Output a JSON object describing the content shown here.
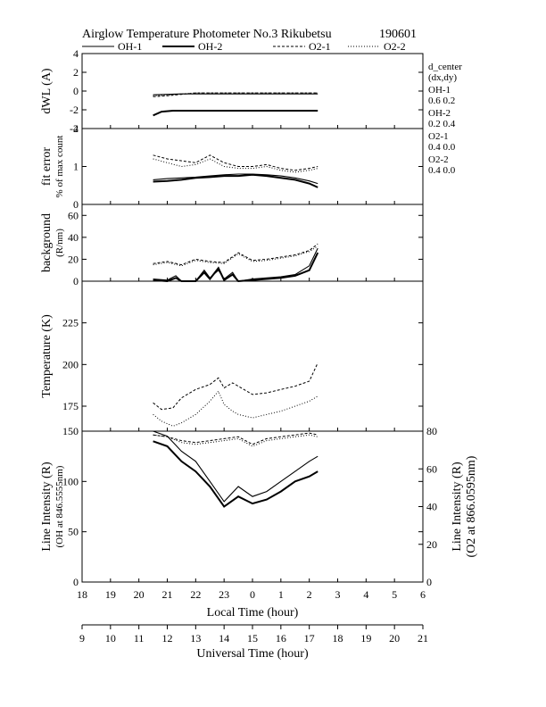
{
  "title": "Airglow Temperature Photometer No.3  Rikubetsu",
  "date": "190601",
  "legend": [
    {
      "name": "OH-1",
      "style": "solid-thin"
    },
    {
      "name": "OH-2",
      "style": "solid-thick"
    },
    {
      "name": "O2-1",
      "style": "dashed"
    },
    {
      "name": "O2-2",
      "style": "dotted"
    }
  ],
  "dcenter": {
    "heading1": "d_center",
    "heading2": "(dx,dy)",
    "rows": [
      {
        "name": "OH-1",
        "value": "0.6  0.2"
      },
      {
        "name": "OH-2",
        "value": "0.2  0.4"
      },
      {
        "name": "O2-1",
        "value": "0.4  0.0"
      },
      {
        "name": "O2-2",
        "value": "0.4  0.0"
      }
    ]
  },
  "x_local": {
    "label": "Local Time (hour)",
    "ticks": [
      "18",
      "19",
      "20",
      "21",
      "22",
      "23",
      "0",
      "1",
      "2",
      "3",
      "4",
      "5",
      "6"
    ]
  },
  "x_ut": {
    "label": "Universal Time (hour)",
    "ticks": [
      "9",
      "10",
      "11",
      "12",
      "13",
      "14",
      "15",
      "16",
      "17",
      "18",
      "19",
      "20",
      "21"
    ]
  },
  "chart_data": [
    {
      "type": "line",
      "panel": "dwl",
      "ylabel": "dWL (A)",
      "ylim": [
        -4,
        4
      ],
      "yticks": [
        "4",
        "2",
        "0",
        "-2",
        "-4"
      ],
      "x_unit": "Local Time (hour)",
      "series": [
        {
          "name": "OH-1",
          "x": [
            20.5,
            21.0,
            21.5,
            22.0,
            22.5,
            23.0,
            23.5,
            24.0,
            24.5,
            25.0,
            25.5,
            26.0,
            26.3
          ],
          "y": [
            -0.4,
            -0.35,
            -0.3,
            -0.3,
            -0.3,
            -0.3,
            -0.3,
            -0.3,
            -0.3,
            -0.3,
            -0.3,
            -0.3,
            -0.3
          ]
        },
        {
          "name": "OH-2",
          "x": [
            20.5,
            20.8,
            21.2,
            21.5,
            22.0,
            22.5,
            23.0,
            23.5,
            24.0,
            24.5,
            25.0,
            25.5,
            26.0,
            26.3
          ],
          "y": [
            -2.6,
            -2.2,
            -2.1,
            -2.1,
            -2.1,
            -2.1,
            -2.1,
            -2.1,
            -2.1,
            -2.1,
            -2.1,
            -2.1,
            -2.1,
            -2.1
          ]
        },
        {
          "name": "O2-1",
          "x": [
            20.5,
            21.0,
            21.5,
            22.0,
            22.5,
            23.0,
            23.5,
            24.0,
            24.5,
            25.0,
            25.5,
            26.0,
            26.3
          ],
          "y": [
            -0.6,
            -0.5,
            -0.35,
            -0.2,
            -0.2,
            -0.2,
            -0.2,
            -0.2,
            -0.2,
            -0.2,
            -0.2,
            -0.2,
            -0.2
          ]
        },
        {
          "name": "O2-2",
          "x": [
            20.5,
            21.0,
            21.5,
            22.0,
            22.5,
            23.0,
            23.5,
            24.0,
            24.5,
            25.0,
            25.5,
            26.0,
            26.3
          ],
          "y": [
            -0.5,
            -0.45,
            -0.3,
            -0.2,
            -0.2,
            -0.2,
            -0.2,
            -0.2,
            -0.2,
            -0.2,
            -0.2,
            -0.2,
            -0.2
          ]
        }
      ]
    },
    {
      "type": "line",
      "panel": "fit",
      "ylabel": "fit error",
      "ylabel2": "% of max count",
      "ylim": [
        0,
        2
      ],
      "yticks": [
        "2",
        "1",
        "0"
      ],
      "x_unit": "Local Time (hour)",
      "series": [
        {
          "name": "OH-1",
          "x": [
            20.5,
            21.0,
            21.5,
            22.0,
            22.5,
            23.0,
            23.5,
            24.0,
            24.5,
            25.0,
            25.5,
            26.0,
            26.3
          ],
          "y": [
            0.65,
            0.68,
            0.7,
            0.72,
            0.75,
            0.78,
            0.8,
            0.8,
            0.78,
            0.75,
            0.7,
            0.62,
            0.55
          ]
        },
        {
          "name": "OH-2",
          "x": [
            20.5,
            21.0,
            21.5,
            22.0,
            22.5,
            23.0,
            23.5,
            24.0,
            24.5,
            25.0,
            25.5,
            26.0,
            26.3
          ],
          "y": [
            0.6,
            0.62,
            0.65,
            0.7,
            0.72,
            0.75,
            0.75,
            0.78,
            0.75,
            0.7,
            0.65,
            0.55,
            0.45
          ]
        },
        {
          "name": "O2-1",
          "x": [
            20.5,
            21.0,
            21.5,
            22.0,
            22.5,
            23.0,
            23.5,
            24.0,
            24.5,
            25.0,
            25.5,
            26.0,
            26.3
          ],
          "y": [
            1.3,
            1.2,
            1.15,
            1.1,
            1.3,
            1.1,
            1.0,
            1.0,
            1.05,
            0.95,
            0.9,
            0.95,
            1.0
          ]
        },
        {
          "name": "O2-2",
          "x": [
            20.5,
            21.0,
            21.5,
            22.0,
            22.5,
            23.0,
            23.5,
            24.0,
            24.5,
            25.0,
            25.5,
            26.0,
            26.3
          ],
          "y": [
            1.2,
            1.1,
            1.0,
            1.05,
            1.2,
            1.0,
            0.95,
            0.95,
            1.0,
            0.9,
            0.85,
            0.9,
            0.95
          ]
        }
      ]
    },
    {
      "type": "line",
      "panel": "background",
      "ylabel": "background",
      "ylabel2": "(R/nm)",
      "ylim": [
        0,
        70
      ],
      "yticks": [
        "60",
        "40",
        "20",
        "0"
      ],
      "x_unit": "Local Time (hour)",
      "series": [
        {
          "name": "OH-1",
          "x": [
            20.5,
            21.0,
            21.3,
            21.5,
            22.0,
            22.3,
            22.5,
            22.8,
            23.0,
            23.3,
            23.5,
            24.0,
            24.5,
            25.0,
            25.5,
            26.0,
            26.3
          ],
          "y": [
            2,
            1,
            5,
            0,
            0,
            10,
            3,
            10,
            2,
            8,
            0,
            2,
            3,
            4,
            6,
            14,
            30
          ]
        },
        {
          "name": "OH-2",
          "x": [
            20.5,
            21.0,
            21.3,
            21.5,
            22.0,
            22.3,
            22.5,
            22.8,
            23.0,
            23.3,
            23.5,
            24.0,
            24.5,
            25.0,
            25.5,
            26.0,
            26.3
          ],
          "y": [
            1,
            0,
            3,
            0,
            0,
            8,
            2,
            12,
            1,
            6,
            0,
            1,
            2,
            3,
            5,
            10,
            26
          ]
        },
        {
          "name": "O2-1",
          "x": [
            20.5,
            21.0,
            21.5,
            22.0,
            22.5,
            23.0,
            23.5,
            24.0,
            24.5,
            25.0,
            25.5,
            26.0,
            26.3
          ],
          "y": [
            16,
            18,
            15,
            20,
            18,
            17,
            26,
            19,
            20,
            22,
            24,
            28,
            34
          ]
        },
        {
          "name": "O2-2",
          "x": [
            20.5,
            21.0,
            21.5,
            22.0,
            22.5,
            23.0,
            23.5,
            24.0,
            24.5,
            25.0,
            25.5,
            26.0,
            26.3
          ],
          "y": [
            15,
            17,
            14,
            19,
            17,
            16,
            25,
            18,
            19,
            21,
            23,
            27,
            32
          ]
        }
      ]
    },
    {
      "type": "line",
      "panel": "temperature",
      "ylabel": "Temperature (K)",
      "ylim": [
        160,
        250
      ],
      "yticks": [
        "225",
        "200",
        "175"
      ],
      "x_unit": "Local Time (hour)",
      "series": [
        {
          "name": "O2-1",
          "x": [
            20.5,
            20.8,
            21.2,
            21.5,
            22.0,
            22.5,
            22.8,
            23.0,
            23.3,
            23.5,
            24.0,
            24.5,
            25.0,
            25.5,
            26.0,
            26.3
          ],
          "y": [
            177,
            173,
            174,
            180,
            185,
            188,
            192,
            186,
            189,
            187,
            182,
            183,
            185,
            187,
            190,
            201
          ]
        },
        {
          "name": "O2-2",
          "x": [
            20.5,
            20.8,
            21.2,
            21.5,
            22.0,
            22.5,
            22.8,
            23.0,
            23.3,
            23.5,
            24.0,
            24.5,
            25.0,
            25.5,
            26.0,
            26.3
          ],
          "y": [
            170,
            166,
            163,
            165,
            170,
            178,
            184,
            176,
            172,
            170,
            168,
            170,
            172,
            175,
            178,
            181
          ]
        }
      ]
    },
    {
      "type": "line",
      "panel": "intensity",
      "ylabel": "Line Intensity (R)",
      "ylabel2": "(OH at 846.5555nm)",
      "y2label": "Line Intensity (R)",
      "y2label2": "(O2 at 866.0595nm)",
      "ylim": [
        0,
        150
      ],
      "yticks": [
        "150",
        "100",
        "50",
        "0"
      ],
      "y2lim": [
        0,
        80
      ],
      "y2ticks": [
        "80",
        "60",
        "40",
        "20",
        "0"
      ],
      "x_unit": "Local Time (hour)",
      "series": [
        {
          "name": "OH-1",
          "axis": "left",
          "x": [
            20.5,
            21.0,
            21.5,
            22.0,
            22.5,
            23.0,
            23.5,
            24.0,
            24.5,
            25.0,
            25.5,
            26.0,
            26.3
          ],
          "y": [
            153,
            145,
            130,
            120,
            100,
            80,
            95,
            85,
            90,
            100,
            110,
            120,
            125
          ]
        },
        {
          "name": "OH-2",
          "axis": "left",
          "x": [
            20.5,
            21.0,
            21.5,
            22.0,
            22.5,
            23.0,
            23.5,
            24.0,
            24.5,
            25.0,
            25.5,
            26.0,
            26.3
          ],
          "y": [
            140,
            135,
            120,
            110,
            95,
            75,
            85,
            78,
            82,
            90,
            100,
            105,
            110
          ]
        },
        {
          "name": "O2-1",
          "axis": "right",
          "x": [
            20.5,
            21.0,
            21.5,
            22.0,
            22.5,
            23.0,
            23.5,
            24.0,
            24.5,
            25.0,
            25.5,
            26.0,
            26.3
          ],
          "y": [
            78,
            77,
            75,
            74,
            75,
            76,
            77,
            73,
            76,
            77,
            78,
            79,
            78
          ]
        },
        {
          "name": "O2-2",
          "axis": "right",
          "x": [
            20.5,
            21.0,
            21.5,
            22.0,
            22.5,
            23.0,
            23.5,
            24.0,
            24.5,
            25.0,
            25.5,
            26.0,
            26.3
          ],
          "y": [
            78,
            77,
            74,
            73,
            74,
            75,
            76,
            72,
            75,
            76,
            77,
            78,
            77
          ]
        }
      ]
    }
  ]
}
